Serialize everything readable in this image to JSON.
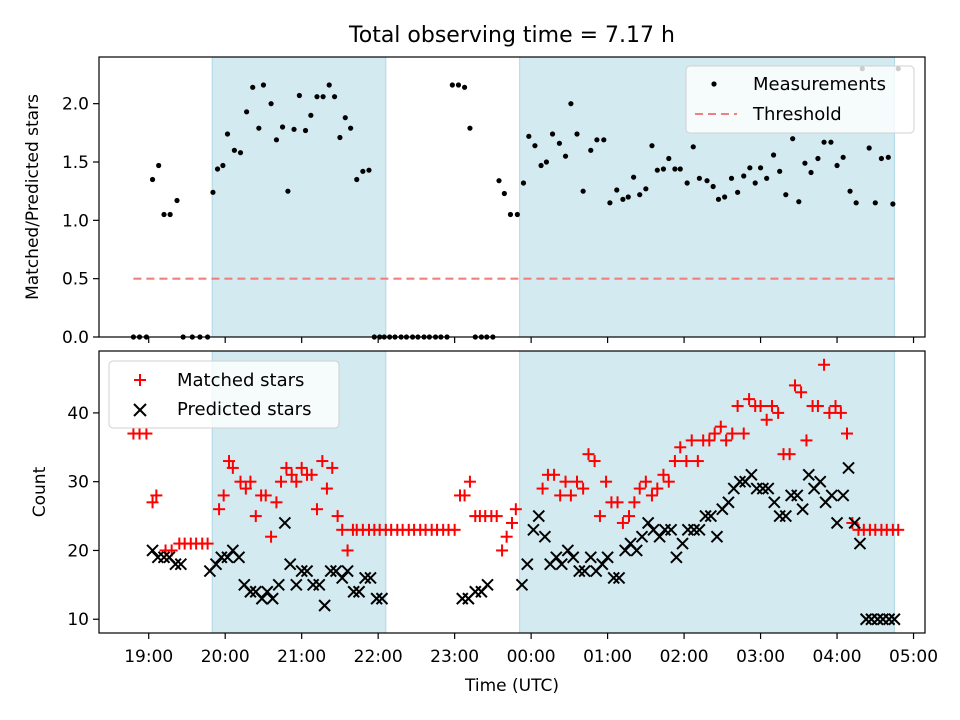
{
  "title": "Total observing time = 7.17 h",
  "chart_data": [
    {
      "type": "scatter",
      "panel": "top",
      "ylabel": "Matched/Predicted stars",
      "ylim": [
        0,
        2.4
      ],
      "yticks": [
        "0.0",
        "0.5",
        "1.0",
        "1.5",
        "2.0"
      ],
      "ytick_values": [
        0,
        0.5,
        1.0,
        1.5,
        2.0
      ],
      "xlim_hours": [
        18.35,
        29.15
      ],
      "x_unit": "hours UTC counted from 00:00 of the first night (values above 24 fall after midnight)",
      "shaded_intervals_hours": [
        [
          19.83,
          22.1
        ],
        [
          23.85,
          28.75
        ]
      ],
      "shade_color": "#d3eaf0",
      "legend_position": "top-right",
      "series": [
        {
          "name": "Measurements",
          "marker": "dot",
          "color": "#000000",
          "x": [
            18.8,
            18.88,
            18.97,
            19.05,
            19.13,
            19.2,
            19.28,
            19.37,
            19.45,
            19.57,
            19.67,
            19.77,
            19.84,
            19.9,
            19.97,
            20.03,
            20.12,
            20.2,
            20.28,
            20.36,
            20.44,
            20.5,
            20.6,
            20.67,
            20.75,
            20.82,
            20.9,
            20.97,
            21.05,
            21.12,
            21.2,
            21.28,
            21.36,
            21.43,
            21.5,
            21.57,
            21.64,
            21.72,
            21.8,
            21.88,
            21.95,
            22.02,
            22.08,
            22.15,
            22.22,
            22.3,
            22.37,
            22.45,
            22.52,
            22.6,
            22.67,
            22.75,
            22.82,
            22.9,
            22.97,
            23.05,
            23.13,
            23.2,
            23.27,
            23.35,
            23.42,
            23.5,
            23.58,
            23.65,
            23.73,
            23.82,
            23.9,
            23.97,
            24.05,
            24.13,
            24.2,
            24.28,
            24.37,
            24.45,
            24.52,
            24.6,
            24.68,
            24.78,
            24.86,
            24.95,
            25.03,
            25.12,
            25.2,
            25.27,
            25.34,
            25.42,
            25.5,
            25.58,
            25.65,
            25.73,
            25.8,
            25.88,
            25.95,
            26.04,
            26.12,
            26.2,
            26.3,
            26.38,
            26.45,
            26.53,
            26.62,
            26.7,
            26.78,
            26.86,
            26.93,
            27.0,
            27.08,
            27.17,
            27.25,
            27.33,
            27.42,
            27.5,
            27.58,
            27.66,
            27.75,
            27.83,
            27.92,
            28.0,
            28.08,
            28.17,
            28.25,
            28.33,
            28.42,
            28.5,
            28.58,
            28.67,
            28.73,
            28.8
          ],
          "y": [
            0.0,
            0.0,
            0.0,
            1.35,
            1.47,
            1.05,
            1.05,
            1.17,
            0.0,
            0.0,
            0.0,
            0.0,
            1.24,
            1.44,
            1.47,
            1.74,
            1.6,
            1.58,
            1.93,
            2.14,
            1.79,
            2.16,
            2.0,
            1.69,
            1.8,
            1.25,
            1.78,
            2.07,
            1.77,
            1.9,
            2.06,
            2.06,
            2.16,
            2.06,
            1.71,
            1.88,
            1.79,
            1.35,
            1.42,
            1.43,
            0.0,
            0.0,
            0.0,
            0.0,
            0.0,
            0.0,
            0.0,
            0.0,
            0.0,
            0.0,
            0.0,
            0.0,
            0.0,
            0.0,
            2.16,
            2.16,
            2.14,
            1.79,
            0.0,
            0.0,
            0.0,
            0.0,
            1.34,
            1.23,
            1.05,
            1.05,
            1.32,
            1.72,
            1.64,
            1.47,
            1.5,
            1.74,
            1.66,
            1.55,
            2.0,
            1.74,
            1.25,
            1.6,
            1.69,
            1.69,
            1.15,
            1.26,
            1.18,
            1.2,
            1.37,
            1.22,
            1.27,
            1.64,
            1.43,
            1.44,
            1.53,
            1.44,
            1.44,
            1.32,
            1.63,
            1.36,
            1.34,
            1.29,
            1.18,
            1.2,
            1.36,
            1.24,
            1.38,
            1.45,
            1.32,
            1.45,
            1.36,
            1.56,
            1.42,
            1.22,
            1.7,
            1.16,
            1.49,
            1.41,
            1.53,
            1.67,
            1.67,
            1.47,
            1.54,
            1.25,
            1.15,
            2.3,
            1.62,
            1.15,
            1.53,
            1.54,
            1.14,
            2.3
          ]
        },
        {
          "name": "Threshold",
          "marker": "dashed-line",
          "color": "#f08080",
          "x": [
            18.8,
            28.75
          ],
          "y": [
            0.5,
            0.5
          ]
        }
      ]
    },
    {
      "type": "scatter",
      "panel": "bottom",
      "ylabel": "Count",
      "xlabel": "Time (UTC)",
      "ylim": [
        8,
        49
      ],
      "yticks": [
        "10",
        "20",
        "30",
        "40"
      ],
      "ytick_values": [
        10,
        20,
        30,
        40
      ],
      "xlim_hours": [
        18.35,
        29.15
      ],
      "xticks": [
        "19:00",
        "20:00",
        "21:00",
        "22:00",
        "23:00",
        "00:00",
        "01:00",
        "02:00",
        "03:00",
        "04:00",
        "05:00"
      ],
      "xtick_values_hours": [
        19,
        20,
        21,
        22,
        23,
        24,
        25,
        26,
        27,
        28,
        29
      ],
      "shaded_intervals_hours": [
        [
          19.83,
          22.1
        ],
        [
          23.85,
          28.75
        ]
      ],
      "shade_color": "#d3eaf0",
      "legend_position": "top-left",
      "series": [
        {
          "name": "Matched stars",
          "marker": "plus",
          "color": "#ff0000",
          "x": [
            18.8,
            18.88,
            18.97,
            19.05,
            19.13,
            19.2,
            19.28,
            19.37,
            19.45,
            19.52,
            19.6,
            19.67,
            19.75,
            19.82,
            19.9,
            19.97,
            20.03,
            20.1,
            20.18,
            20.25,
            20.32,
            20.4,
            20.48,
            20.55,
            20.62,
            20.7,
            20.78,
            20.86,
            20.93,
            21.0,
            21.08,
            21.15,
            21.23,
            21.3,
            21.38,
            21.46,
            21.53,
            21.6,
            21.68,
            21.76,
            21.83,
            21.91,
            21.98,
            22.05,
            22.12,
            22.2,
            22.27,
            22.35,
            22.42,
            22.5,
            22.57,
            22.65,
            22.72,
            22.8,
            22.87,
            22.95,
            23.03,
            23.1,
            23.18,
            23.27,
            23.35,
            23.43,
            23.5,
            23.58,
            23.65,
            23.73,
            23.85,
            23.93,
            24.0,
            24.08,
            24.15,
            24.22,
            24.3,
            24.38,
            24.45,
            24.52,
            24.6,
            24.68,
            24.75,
            24.83,
            24.9,
            24.98,
            25.05,
            25.13,
            25.2,
            25.28,
            25.35,
            25.42,
            25.5,
            25.58,
            25.65,
            25.73,
            25.8,
            25.88,
            25.95,
            26.03,
            26.1,
            26.18,
            26.25,
            26.33,
            26.4,
            26.48,
            26.55,
            26.63,
            26.7,
            26.78,
            26.85,
            26.93,
            27.0,
            27.08,
            27.15,
            27.23,
            27.3,
            27.38,
            27.45,
            27.53,
            27.6,
            27.68,
            27.75,
            27.83,
            27.9,
            27.98,
            28.05,
            28.13,
            28.2,
            28.28,
            28.35,
            28.43,
            28.5,
            28.58,
            28.65,
            28.73,
            28.8
          ],
          "y": [
            37,
            37,
            37,
            27,
            28,
            20,
            20,
            21,
            21,
            21,
            21,
            21,
            21,
            26,
            28,
            33,
            32,
            30,
            29,
            30,
            25,
            28,
            28,
            22,
            27,
            30,
            32,
            31,
            30,
            32,
            31,
            31,
            26,
            33,
            29,
            32,
            25,
            23,
            20,
            23,
            23,
            23,
            23,
            23,
            23,
            23,
            23,
            23,
            23,
            23,
            23,
            23,
            23,
            23,
            23,
            23,
            23,
            23,
            28,
            28,
            30,
            25,
            25,
            25,
            25,
            25,
            20,
            22,
            24,
            26,
            29,
            31,
            31,
            28,
            30,
            28,
            30,
            29,
            34,
            33,
            25,
            30,
            27,
            27,
            24,
            25,
            27,
            29,
            30,
            28,
            29,
            31,
            30,
            33,
            35,
            33,
            36,
            33,
            36,
            36,
            37,
            38,
            36,
            37,
            41,
            37,
            42,
            41,
            41,
            39,
            41,
            40,
            34,
            34,
            44,
            43,
            36,
            41,
            41,
            47,
            40,
            41,
            40,
            37,
            24,
            23,
            23,
            23,
            23,
            23,
            23,
            23,
            23
          ],
          "x_draw": [
            18.8,
            18.88,
            18.97,
            19.05,
            19.1,
            19.22,
            19.3,
            19.4,
            19.47,
            19.55,
            19.62,
            19.7,
            19.77,
            19.92,
            19.98,
            20.05,
            20.1,
            20.2,
            20.27,
            20.33,
            20.4,
            20.47,
            20.53,
            20.6,
            20.67,
            20.73,
            20.8,
            20.87,
            20.93,
            21.0,
            21.07,
            21.13,
            21.2,
            21.27,
            21.33,
            21.4,
            21.47,
            21.53,
            21.6,
            21.67,
            21.72,
            21.8,
            21.88,
            21.95,
            22.02,
            22.1,
            22.17,
            22.25,
            22.32,
            22.4,
            22.47,
            22.55,
            22.62,
            22.7,
            22.77,
            22.85,
            22.92,
            23.0,
            23.07,
            23.13,
            23.2,
            23.27,
            23.33,
            23.4,
            23.48,
            23.55,
            23.62,
            23.68,
            23.75,
            23.8
          ]
        },
        {
          "name": "Predicted stars",
          "marker": "x",
          "color": "#000000",
          "x": [
            19.05,
            19.12,
            19.2,
            19.27,
            19.35,
            19.42,
            19.8,
            19.88,
            19.95,
            20.03,
            20.1,
            20.18,
            20.25,
            20.33,
            20.4,
            20.48,
            20.55,
            20.62,
            20.7,
            20.78,
            20.85,
            20.93,
            21.0,
            21.07,
            21.15,
            21.23,
            21.3,
            21.38,
            21.45,
            21.53,
            21.6,
            21.68,
            21.75,
            21.83,
            21.9,
            21.98,
            22.05,
            23.1,
            23.18,
            23.27,
            23.35,
            23.43,
            23.88,
            23.95,
            24.03,
            24.1,
            24.18,
            24.25,
            24.33,
            24.4,
            24.48,
            24.55,
            24.63,
            24.7,
            24.78,
            24.85,
            24.93,
            25.0,
            25.08,
            25.15,
            25.23,
            25.3,
            25.38,
            25.45,
            25.53,
            25.6,
            25.68,
            25.75,
            25.83,
            25.9,
            25.98,
            26.05,
            26.13,
            26.2,
            26.28,
            26.35,
            26.43,
            26.5,
            26.58,
            26.65,
            26.73,
            26.8,
            26.88,
            26.95,
            27.03,
            27.1,
            27.18,
            27.25,
            27.33,
            27.4,
            27.48,
            27.55,
            27.63,
            27.7,
            27.78,
            27.85,
            27.93,
            28.0,
            28.08,
            28.15,
            28.23,
            28.3,
            28.38,
            28.45,
            28.53,
            28.6,
            28.68,
            28.75,
            28.82
          ],
          "y": [
            20,
            19,
            19,
            19,
            18,
            18,
            17,
            18,
            19,
            19,
            20,
            19,
            15,
            14,
            14,
            13,
            14,
            13,
            15,
            24,
            18,
            15,
            17,
            17,
            15,
            15,
            12,
            17,
            17,
            16,
            17,
            14,
            14,
            16,
            16,
            13,
            13,
            13,
            13,
            14,
            14,
            15,
            15,
            18,
            23,
            25,
            22,
            18,
            19,
            18,
            20,
            19,
            17,
            17,
            19,
            17,
            18,
            19,
            16,
            16,
            20,
            21,
            20,
            22,
            24,
            23,
            22,
            23,
            23,
            19,
            21,
            23,
            23,
            23,
            25,
            25,
            22,
            26,
            27,
            29,
            30,
            30,
            31,
            29,
            29,
            29,
            27,
            25,
            25,
            28,
            28,
            26,
            31,
            29,
            30,
            27,
            28,
            24,
            28,
            32,
            24,
            21,
            10,
            10,
            10,
            10,
            10,
            10,
            10
          ],
          "x_draw": [
            19.05,
            19.12,
            19.2,
            19.27,
            19.35,
            19.42,
            19.8,
            19.88,
            19.95,
            20.03,
            20.1,
            20.18,
            20.25,
            20.33,
            20.4,
            20.48,
            20.55,
            20.62,
            20.7,
            20.78,
            20.85,
            20.93,
            21.0,
            21.07,
            21.15,
            21.23,
            21.3,
            21.38,
            21.45,
            21.53,
            21.6,
            21.68,
            21.75,
            21.83,
            21.9,
            21.98,
            22.05,
            23.1,
            23.18,
            23.27,
            23.35,
            23.43,
            23.88,
            23.95,
            24.03,
            24.1,
            24.18,
            24.25,
            24.33,
            24.4,
            24.48,
            24.55,
            24.63,
            24.7,
            24.78,
            24.85,
            24.93,
            25.0,
            25.08,
            25.15,
            25.23,
            25.3,
            25.38,
            25.45,
            25.53,
            25.6,
            25.68,
            25.75,
            25.83,
            25.9,
            25.98,
            26.05,
            26.13,
            26.2,
            26.28,
            26.35,
            26.43,
            26.5,
            26.58,
            26.65,
            26.73,
            26.8,
            26.88,
            26.95,
            27.03,
            27.1,
            27.18,
            27.25,
            27.33,
            27.4,
            27.48,
            27.55,
            27.63,
            27.7,
            27.78,
            27.85,
            27.93,
            28.0,
            28.08,
            28.15,
            28.23,
            28.3,
            28.38,
            28.45,
            28.53,
            28.6,
            28.68,
            28.75,
            28.82
          ]
        }
      ]
    }
  ]
}
